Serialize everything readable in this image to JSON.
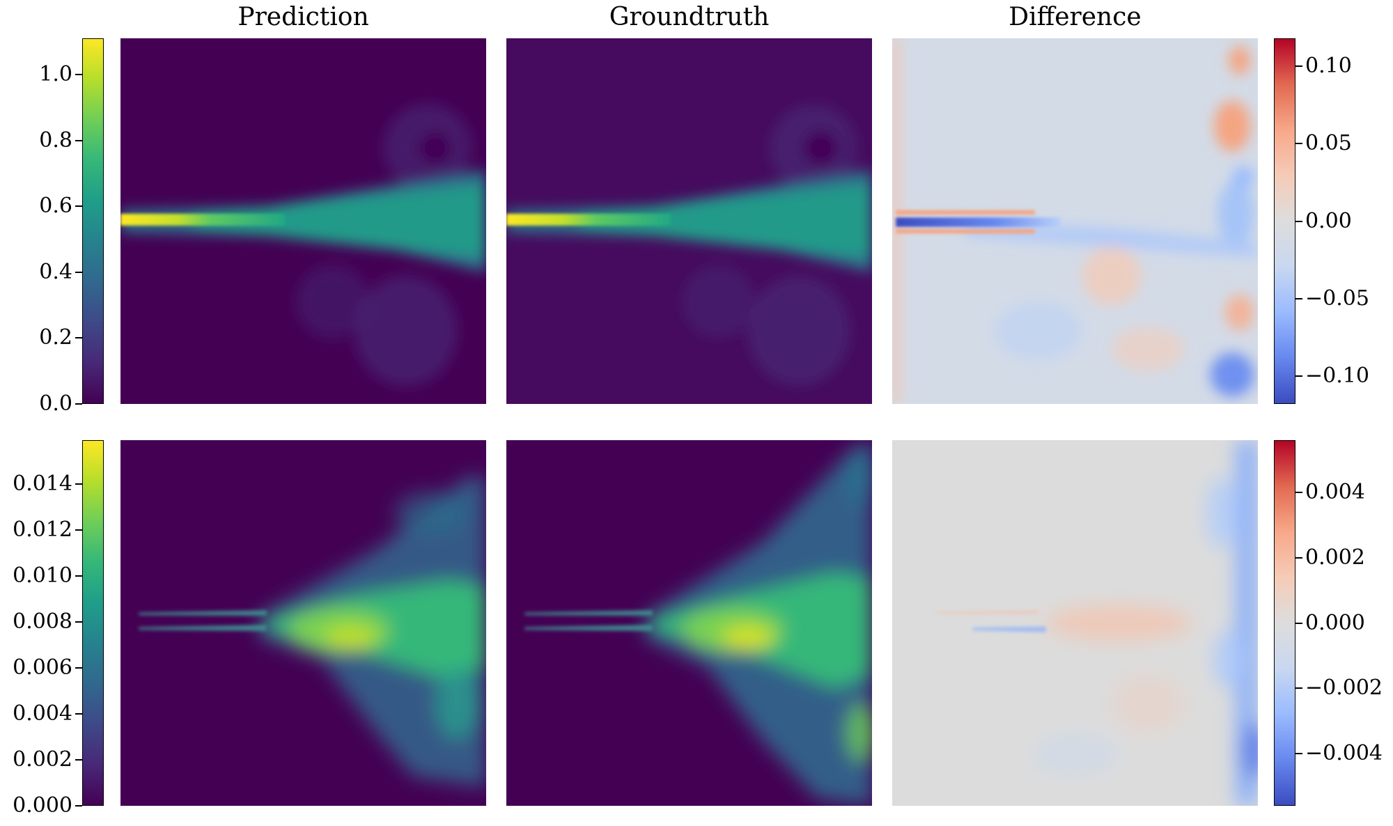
{
  "columns": {
    "prediction": "Prediction",
    "groundtruth": "Groundtruth",
    "difference": "Difference"
  },
  "chart_data": [
    {
      "type": "heatmap",
      "row": 1,
      "panels": [
        "Prediction",
        "Groundtruth"
      ],
      "colormap": "viridis",
      "colorbar": {
        "ticks": [
          "0.0",
          "0.2",
          "0.4",
          "0.6",
          "0.8",
          "1.0"
        ],
        "values": [
          0.0,
          0.2,
          0.4,
          0.6,
          0.8,
          1.0
        ],
        "range": [
          0.0,
          1.11
        ]
      }
    },
    {
      "type": "heatmap",
      "row": 1,
      "panels": [
        "Difference"
      ],
      "colormap": "coolwarm",
      "colorbar": {
        "ticks": [
          "0.10",
          "0.05",
          "0.00",
          "−0.05",
          "−0.10"
        ],
        "values": [
          0.1,
          0.05,
          0.0,
          -0.05,
          -0.1
        ],
        "range": [
          -0.118,
          0.118
        ]
      }
    },
    {
      "type": "heatmap",
      "row": 2,
      "panels": [
        "Prediction",
        "Groundtruth"
      ],
      "colormap": "viridis",
      "colorbar": {
        "ticks": [
          "0.000",
          "0.002",
          "0.004",
          "0.006",
          "0.008",
          "0.010",
          "0.012",
          "0.014"
        ],
        "values": [
          0.0,
          0.002,
          0.004,
          0.006,
          0.008,
          0.01,
          0.012,
          0.014
        ],
        "range": [
          0.0,
          0.0159
        ]
      }
    },
    {
      "type": "heatmap",
      "row": 2,
      "panels": [
        "Difference"
      ],
      "colormap": "coolwarm",
      "colorbar": {
        "ticks": [
          "0.004",
          "0.002",
          "0.000",
          "−0.002",
          "−0.004"
        ],
        "values": [
          0.004,
          0.002,
          0.0,
          -0.002,
          -0.004
        ],
        "range": [
          -0.0056,
          0.0056
        ]
      }
    }
  ]
}
